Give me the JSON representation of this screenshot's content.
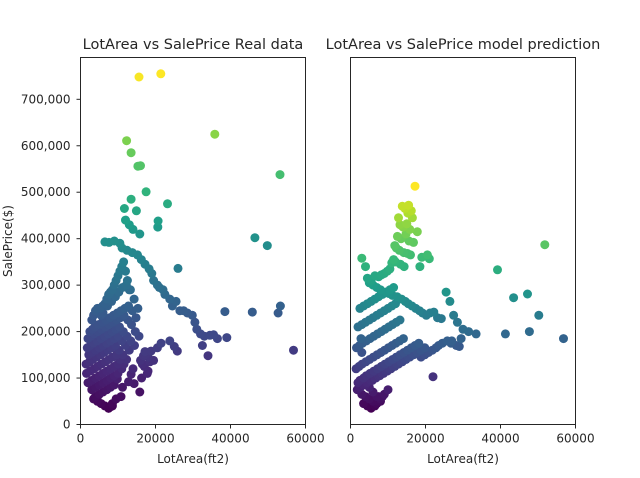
{
  "chart_data": [
    {
      "type": "scatter",
      "title": "LotArea vs SalePrice Real data",
      "xlabel": "LotArea(ft2)",
      "ylabel": "SalePrice($)",
      "xlim": [
        0,
        60000
      ],
      "ylim": [
        0,
        790000
      ],
      "xticks": [
        "0",
        "20000",
        "40000",
        "60000"
      ],
      "yticks": [
        "0",
        "100,000",
        "200,000",
        "300,000",
        "400,000",
        "500,000",
        "600,000",
        "700,000"
      ],
      "colormap": "viridis",
      "color_by": "y",
      "series": [
        {
          "x": [
            15600,
            21400,
            35800,
            12300,
            13500,
            15300,
            16000,
            17500,
            23200,
            53200,
            46500,
            49800,
            26000,
            20700,
            20600,
            13500,
            14900,
            11700,
            12000,
            13000,
            14000,
            15800,
            6500,
            7600,
            9000,
            10500,
            11100,
            12400,
            13800,
            15200,
            16200,
            17200,
            18300,
            19000,
            19500,
            20500,
            21000,
            22000,
            22500,
            23800,
            25500,
            24500,
            26500,
            27500,
            28500,
            29800,
            30500,
            31000,
            32000,
            33000,
            34500,
            35500,
            38500,
            45800,
            53300,
            52700,
            56800,
            32500,
            34000,
            36500,
            39000,
            16000,
            17300,
            18800,
            20500,
            21500,
            23800,
            25000,
            25800,
            18000,
            16500,
            17000,
            5000,
            5200,
            5900,
            6500,
            7000,
            7500,
            8000,
            8500,
            9000,
            9500,
            10000,
            10500,
            11000,
            11500,
            12000,
            12500,
            13000,
            3000,
            3500,
            4000,
            4500,
            5500,
            6000,
            7200,
            8300,
            9300,
            10200,
            11200,
            12200,
            13300,
            14300,
            15300,
            2500,
            3200,
            3800,
            4800,
            5800,
            6800,
            7800,
            8800,
            9800,
            10800,
            11800,
            12800,
            13800,
            14800,
            2000,
            2800,
            3600,
            4600,
            5600,
            6600,
            7600,
            8600,
            9600,
            10600,
            11600,
            12600,
            13600,
            14600,
            15600,
            1800,
            2600,
            3400,
            4400,
            5400,
            6400,
            7400,
            8400,
            9400,
            10400,
            11400,
            12400,
            13400,
            14400,
            2200,
            3000,
            4000,
            5000,
            6000,
            7000,
            8000,
            9000,
            10000,
            11000,
            12000,
            13000,
            1500,
            2400,
            3300,
            4300,
            5300,
            6300,
            7300,
            8300,
            9300,
            10300,
            11300,
            12300,
            1600,
            2600,
            3600,
            4600,
            5600,
            6600,
            7600,
            8600,
            9600,
            10600,
            11600,
            2000,
            3000,
            4000,
            5000,
            6000,
            7000,
            8000,
            9000,
            10000,
            11000,
            3000,
            4000,
            5000,
            6000,
            7000,
            8000,
            9000,
            10000,
            4000,
            5000,
            6000,
            7000,
            8000,
            9000,
            3500,
            4500,
            5500,
            6500,
            7500,
            8500,
            9500,
            7500,
            8000,
            8500,
            4500,
            13500,
            14000,
            18000,
            18500,
            19500,
            17200,
            16800,
            9800,
            11200,
            10800,
            12800,
            14300,
            15800,
            16300,
            17800
          ],
          "y": [
            748000,
            755000,
            625000,
            611000,
            585000,
            556000,
            557000,
            501000,
            475000,
            538000,
            402000,
            385000,
            336000,
            438000,
            425000,
            485000,
            460000,
            465000,
            440000,
            430000,
            420000,
            410000,
            393000,
            392000,
            395000,
            390000,
            380000,
            375000,
            370000,
            365000,
            355000,
            345000,
            335000,
            325000,
            310000,
            300000,
            295000,
            290000,
            280000,
            270000,
            265000,
            255000,
            245000,
            245000,
            240000,
            235000,
            220000,
            205000,
            195000,
            190000,
            192000,
            193000,
            243000,
            242000,
            255000,
            240000,
            160000,
            170000,
            148000,
            185000,
            187000,
            138000,
            150000,
            158000,
            165000,
            175000,
            180000,
            168000,
            158000,
            145000,
            130000,
            125000,
            240000,
            250000,
            255000,
            260000,
            270000,
            280000,
            285000,
            290000,
            300000,
            310000,
            320000,
            330000,
            340000,
            350000,
            330000,
            310000,
            290000,
            225000,
            235000,
            245000,
            250000,
            235000,
            240000,
            255000,
            265000,
            275000,
            285000,
            295000,
            300000,
            290000,
            270000,
            250000,
            200000,
            205000,
            210000,
            215000,
            220000,
            225000,
            230000,
            235000,
            240000,
            245000,
            250000,
            255000,
            245000,
            230000,
            185000,
            190000,
            195000,
            200000,
            205000,
            210000,
            215000,
            220000,
            225000,
            230000,
            235000,
            225000,
            215000,
            200000,
            190000,
            165000,
            170000,
            175000,
            180000,
            185000,
            190000,
            195000,
            200000,
            205000,
            210000,
            200000,
            190000,
            180000,
            170000,
            150000,
            155000,
            160000,
            165000,
            170000,
            175000,
            180000,
            185000,
            190000,
            180000,
            170000,
            160000,
            130000,
            135000,
            140000,
            145000,
            150000,
            155000,
            160000,
            165000,
            170000,
            160000,
            150000,
            140000,
            110000,
            115000,
            120000,
            125000,
            130000,
            135000,
            140000,
            145000,
            150000,
            140000,
            130000,
            90000,
            95000,
            100000,
            105000,
            110000,
            115000,
            120000,
            125000,
            130000,
            120000,
            75000,
            80000,
            85000,
            90000,
            95000,
            100000,
            105000,
            110000,
            60000,
            65000,
            70000,
            75000,
            80000,
            85000,
            55000,
            50000,
            45000,
            40000,
            35000,
            45000,
            55000,
            35000,
            38000,
            40000,
            52000,
            108000,
            120000,
            115000,
            135000,
            138000,
            157000,
            148000,
            98000,
            80000,
            60000,
            92000,
            88000,
            70000,
            100000,
            110000
          ]
        }
      ]
    },
    {
      "type": "scatter",
      "title": "LotArea vs SalePrice model prediction",
      "xlabel": "LotArea(ft2)",
      "ylabel": "",
      "xlim": [
        0,
        60000
      ],
      "ylim": [
        0,
        790000
      ],
      "xticks": [
        "0",
        "20000",
        "40000",
        "60000"
      ],
      "colormap": "viridis",
      "color_by": "y",
      "series": [
        {
          "x": [
            17200,
            13800,
            14500,
            15500,
            15300,
            16200,
            16500,
            12800,
            13200,
            14000,
            15000,
            15800,
            17800,
            12500,
            13500,
            14800,
            15600,
            16800,
            11800,
            12200,
            13000,
            14200,
            15200,
            16000,
            19000,
            20500,
            21000,
            18500,
            11000,
            11500,
            12000,
            13300,
            14300,
            10500,
            9800,
            9000,
            8200,
            7500,
            6500,
            5500,
            4500,
            3000,
            4000,
            5000,
            6000,
            7000,
            8000,
            9500,
            10200,
            11200,
            12400,
            13600,
            14600,
            15400,
            16400,
            17400,
            18400,
            19200,
            20200,
            21200,
            22200,
            23200,
            24200,
            25500,
            26500,
            27500,
            28500,
            30000,
            31500,
            33500,
            29500,
            27000,
            24500,
            23500,
            22800,
            21800,
            20800,
            19800,
            18800,
            25800,
            26800,
            28200,
            29000,
            51800,
            39200,
            43500,
            47200,
            41300,
            47700,
            50200,
            56800,
            22000,
            2000,
            2500,
            3500,
            4200,
            5200,
            6200,
            7200,
            8200,
            9200,
            10200,
            11200,
            12200,
            13200,
            14200,
            15200,
            16200,
            17200,
            18200,
            1800,
            2600,
            3400,
            4400,
            5400,
            6400,
            7400,
            8400,
            9400,
            10400,
            11400,
            12400,
            13400,
            14400,
            15400,
            1500,
            2300,
            3100,
            4100,
            5100,
            6100,
            7100,
            8100,
            9100,
            10100,
            11100,
            12100,
            13100,
            14100,
            1600,
            2400,
            3200,
            4200,
            5200,
            6200,
            7200,
            8200,
            9200,
            10200,
            11200,
            12200,
            13200,
            2000,
            3000,
            4000,
            5000,
            6000,
            7000,
            8000,
            9000,
            10000,
            11000,
            12000,
            2500,
            3500,
            4500,
            5500,
            6500,
            7500,
            8500,
            9500,
            10500,
            11500,
            3000,
            4000,
            5000,
            6000,
            7000,
            8000,
            9000,
            10000,
            3500,
            4500,
            5500,
            6500,
            7500,
            8500,
            4000,
            5000,
            6000,
            7000,
            8000,
            7500,
            3000,
            2800,
            5800,
            6800,
            7800,
            8800,
            9800,
            10800,
            11800,
            12800,
            13800,
            14800,
            15800,
            16800,
            17800,
            18800,
            19800
          ],
          "y": [
            513000,
            470000,
            465000,
            472000,
            455000,
            460000,
            445000,
            445000,
            430000,
            425000,
            432000,
            420000,
            415000,
            405000,
            400000,
            410000,
            395000,
            392000,
            385000,
            380000,
            375000,
            370000,
            368000,
            365000,
            360000,
            365000,
            357000,
            340000,
            348000,
            355000,
            350000,
            345000,
            340000,
            335000,
            330000,
            325000,
            322000,
            318000,
            320000,
            310000,
            315000,
            358000,
            340000,
            305000,
            300000,
            295000,
            290000,
            285000,
            282000,
            278000,
            275000,
            270000,
            265000,
            260000,
            255000,
            250000,
            245000,
            240000,
            235000,
            240000,
            242000,
            230000,
            228000,
            285000,
            265000,
            235000,
            220000,
            205000,
            200000,
            195000,
            185000,
            180000,
            175000,
            170000,
            165000,
            160000,
            155000,
            150000,
            145000,
            180000,
            175000,
            170000,
            168000,
            387000,
            333000,
            273000,
            281000,
            195000,
            200000,
            235000,
            185000,
            103000,
            90000,
            95000,
            100000,
            105000,
            110000,
            115000,
            120000,
            125000,
            130000,
            135000,
            140000,
            145000,
            150000,
            155000,
            160000,
            165000,
            170000,
            175000,
            75000,
            80000,
            85000,
            90000,
            95000,
            100000,
            105000,
            110000,
            115000,
            120000,
            125000,
            130000,
            135000,
            140000,
            145000,
            120000,
            125000,
            130000,
            135000,
            140000,
            145000,
            150000,
            155000,
            160000,
            165000,
            170000,
            175000,
            180000,
            185000,
            165000,
            170000,
            175000,
            180000,
            185000,
            190000,
            195000,
            200000,
            205000,
            210000,
            215000,
            220000,
            225000,
            210000,
            215000,
            220000,
            225000,
            230000,
            235000,
            240000,
            245000,
            250000,
            255000,
            260000,
            250000,
            255000,
            260000,
            265000,
            270000,
            275000,
            280000,
            285000,
            290000,
            295000,
            65000,
            60000,
            55000,
            50000,
            45000,
            55000,
            65000,
            75000,
            45000,
            40000,
            35000,
            40000,
            50000,
            60000,
            85000,
            80000,
            70000,
            60000,
            50000,
            60000,
            155000,
            185000,
            95000,
            100000,
            105000,
            110000,
            115000,
            120000,
            125000,
            130000,
            135000,
            140000,
            145000,
            150000,
            155000,
            160000,
            165000
          ]
        }
      ]
    }
  ]
}
